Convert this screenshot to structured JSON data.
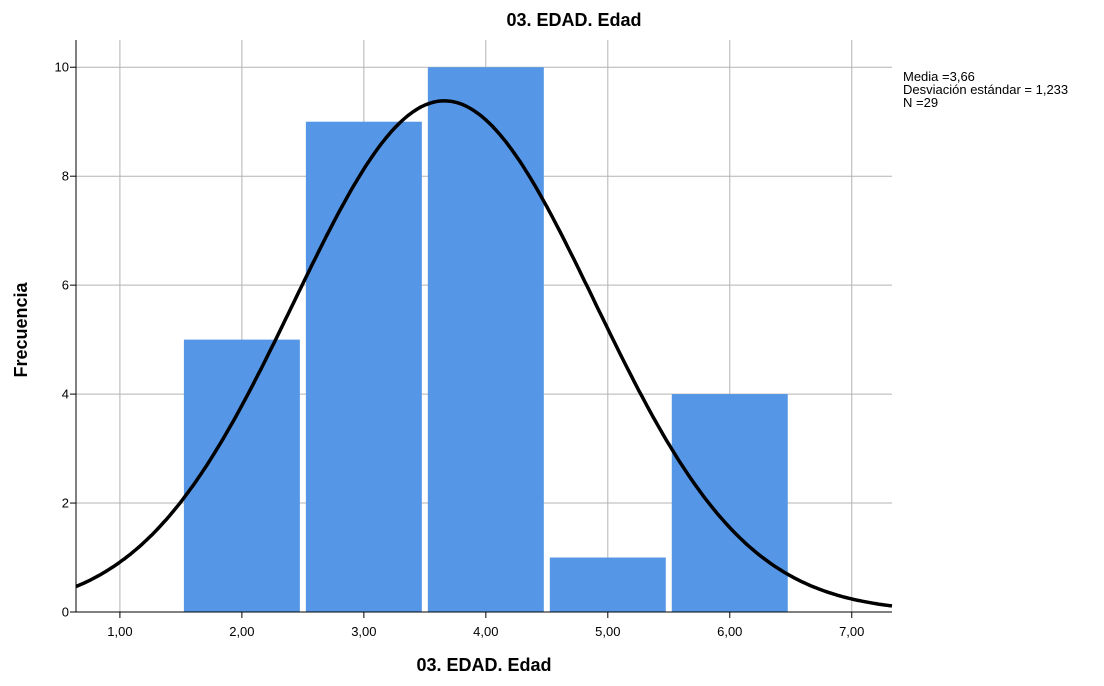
{
  "chart_data": {
    "type": "bar",
    "title": "03. EDAD. Edad",
    "xlabel": "03. EDAD. Edad",
    "ylabel": "Frecuencia",
    "bins": [
      {
        "center": 2.0,
        "value": 5
      },
      {
        "center": 3.0,
        "value": 9
      },
      {
        "center": 4.0,
        "value": 10
      },
      {
        "center": 5.0,
        "value": 1
      },
      {
        "center": 6.0,
        "value": 4
      }
    ],
    "xlim": [
      0.64,
      7.33
    ],
    "ylim": [
      0,
      10.5
    ],
    "xticks": [
      1,
      2,
      3,
      4,
      5,
      6,
      7
    ],
    "xtick_labels": [
      "1,00",
      "2,00",
      "3,00",
      "4,00",
      "5,00",
      "6,00",
      "7,00"
    ],
    "yticks": [
      0,
      2,
      4,
      6,
      8,
      10
    ],
    "ytick_labels": [
      "0",
      "2",
      "4",
      "6",
      "8",
      "10"
    ],
    "grid": true,
    "normal_curve": {
      "mean": 3.66,
      "std": 1.233,
      "n": 29,
      "bin_width": 1
    },
    "stats_lines": [
      "Media =3,66",
      "Desviación estándar = 1,233",
      "N =29"
    ],
    "colors": {
      "bar": "#5596e6",
      "curve": "#000000",
      "grid": "#b3b3b3",
      "axis": "#000000"
    }
  }
}
